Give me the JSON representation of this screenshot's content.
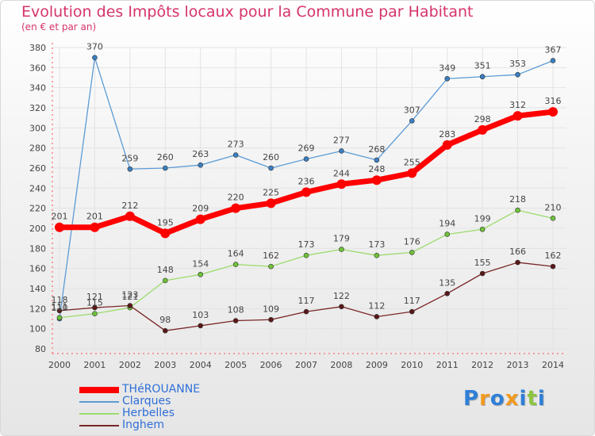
{
  "title": "Evolution des Impôts locaux pour la Commune par Habitant",
  "subtitle": "(en € et par an)",
  "logo": {
    "text": "Proxiti",
    "letters": [
      {
        "ch": "P",
        "color": "#2f7fd8"
      },
      {
        "ch": "r",
        "color": "#f29a1f"
      },
      {
        "ch": "o",
        "color": "#2f7fd8"
      },
      {
        "ch": "x",
        "color": "#f29a1f"
      },
      {
        "ch": "i",
        "color": "#2f7fd8"
      },
      {
        "ch": "t",
        "color": "#8cc63f"
      },
      {
        "ch": "i",
        "color": "#2f7fd8"
      }
    ]
  },
  "chart_data": {
    "type": "line",
    "title": "Evolution des Impôts locaux pour la Commune par Habitant",
    "ylabel": "(en € et par an)",
    "x": [
      2000,
      2001,
      2002,
      2003,
      2004,
      2005,
      2006,
      2007,
      2008,
      2009,
      2010,
      2011,
      2012,
      2013,
      2014
    ],
    "ylim": [
      80,
      380
    ],
    "yticks": [
      80,
      100,
      120,
      140,
      160,
      180,
      200,
      220,
      240,
      260,
      280,
      300,
      320,
      340,
      360,
      380
    ],
    "grid": true,
    "legend_position": "bottom-left",
    "series": [
      {
        "name": "Clarques",
        "color": "#5b9bd5",
        "marker": "#3a7fc1",
        "values": [
          110,
          370,
          259,
          260,
          263,
          273,
          260,
          269,
          277,
          268,
          307,
          349,
          351,
          353,
          367
        ]
      },
      {
        "name": "Herbelles",
        "color": "#9bdb6b",
        "marker": "#6fc23a",
        "values": [
          111,
          115,
          121,
          148,
          154,
          164,
          162,
          173,
          179,
          173,
          176,
          194,
          199,
          218,
          210
        ]
      },
      {
        "name": "Inghem",
        "color": "#7a2626",
        "marker": "#5a1818",
        "values": [
          118,
          121,
          123,
          98,
          103,
          108,
          109,
          117,
          122,
          112,
          117,
          135,
          155,
          166,
          162
        ]
      },
      {
        "name": "THéROUANNE",
        "color": "#ff0000",
        "marker": "#ff0000",
        "thick": true,
        "values": [
          201,
          201,
          212,
          195,
          209,
          220,
          225,
          236,
          244,
          248,
          255,
          283,
          298,
          312,
          316
        ]
      }
    ]
  }
}
